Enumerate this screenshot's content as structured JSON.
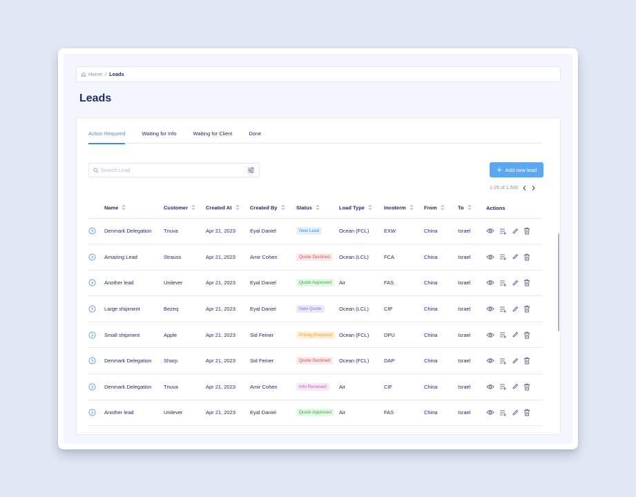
{
  "breadcrumb": {
    "home": "Home",
    "separator": "/",
    "current": "Leads"
  },
  "page": {
    "title": "Leads"
  },
  "tabs": [
    "Action Required",
    "Waiting for Info",
    "Waiting for Client",
    "Done"
  ],
  "active_tab": "Action Required",
  "search": {
    "placeholder": "Search Lead",
    "value": ""
  },
  "add_button": {
    "label": "Add new lead"
  },
  "pagination": {
    "range": "1-25 of 1,500"
  },
  "table": {
    "columns": [
      "Name",
      "Customer",
      "Created At",
      "Created By",
      "Status",
      "Load Type",
      "Incoterm",
      "From",
      "To",
      "Actions"
    ],
    "rows": [
      {
        "name": "Denmark Delegation",
        "customer": "Tnuva",
        "created_at": "Apr 21, 2023",
        "created_by": "Eyal Daniel",
        "status": "New Lead",
        "load_type": "Ocean (FCL)",
        "incoterm": "EXW",
        "from": "China",
        "to": "Israel"
      },
      {
        "name": "Amazing Lead",
        "customer": "Strauss",
        "created_at": "Apr 21, 2023",
        "created_by": "Amir Cohen",
        "status": "Quote Declined",
        "load_type": "Ocean (LCL)",
        "incoterm": "FCA",
        "from": "China",
        "to": "Israel"
      },
      {
        "name": "Another lead",
        "customer": "Unilever",
        "created_at": "Apr 21, 2023",
        "created_by": "Eyal Daniel",
        "status": "Quote Approved",
        "load_type": "Air",
        "incoterm": "FAS",
        "from": "China",
        "to": "Israel"
      },
      {
        "name": "Large shipment",
        "customer": "Bezeq",
        "created_at": "Apr 21, 2023",
        "created_by": "Eyal Daniel",
        "status": "New Quote",
        "load_type": "Ocean (LCL)",
        "incoterm": "CIP",
        "from": "China",
        "to": "Israel"
      },
      {
        "name": "Small shipment",
        "customer": "Apple",
        "created_at": "Apr 21, 2023",
        "created_by": "Sid Feiner",
        "status": "Pricing Required",
        "load_type": "Ocean (FCL)",
        "incoterm": "DPU",
        "from": "China",
        "to": "Israel"
      },
      {
        "name": "Denmark Delegation",
        "customer": "Sharp",
        "created_at": "Apr 21, 2023",
        "created_by": "Sid Feiner",
        "status": "Quote Declined",
        "load_type": "Ocean (FCL)",
        "incoterm": "DAP",
        "from": "China",
        "to": "Israel"
      },
      {
        "name": "Denmark Delegation",
        "customer": "Tnuva",
        "created_at": "Apr 21, 2023",
        "created_by": "Amir Cohen",
        "status": "Info Received",
        "load_type": "Air",
        "incoterm": "CIF",
        "from": "China",
        "to": "Israel"
      },
      {
        "name": "Another lead",
        "customer": "Unilever",
        "created_at": "Apr 21, 2023",
        "created_by": "Eyal Daniel",
        "status": "Quote Approved",
        "load_type": "Air",
        "incoterm": "FAS",
        "from": "China",
        "to": "Israel"
      }
    ]
  },
  "status_styles": {
    "New Lead": {
      "bg": "#e3f1fd",
      "fg": "#3d8fe6"
    },
    "Quote Declined": {
      "bg": "#fde7e7",
      "fg": "#e5484d"
    },
    "Quote Approved": {
      "bg": "#e5f7e7",
      "fg": "#39a845"
    },
    "New Quote": {
      "bg": "#ece7fb",
      "fg": "#8a6de9"
    },
    "Pricing Required": {
      "bg": "#fdf1de",
      "fg": "#ef9a27"
    },
    "Info Received": {
      "bg": "#fbe7f7",
      "fg": "#d155c0"
    }
  },
  "colors": {
    "accent": "#5aa8f3",
    "active_tab": "#3d8fe6",
    "text": "#1d2b6b",
    "muted": "#8791b3",
    "background": "#e1e7f4"
  },
  "icons": {
    "home": "home-icon",
    "search": "search-icon",
    "filter": "filter-sliders-icon",
    "add": "plus-icon",
    "sort": "sort-icon",
    "expand": "chevron-right-circle-icon",
    "view": "eye-icon",
    "add_to_list": "playlist-add-icon",
    "edit": "pencil-icon",
    "delete": "trash-icon"
  }
}
